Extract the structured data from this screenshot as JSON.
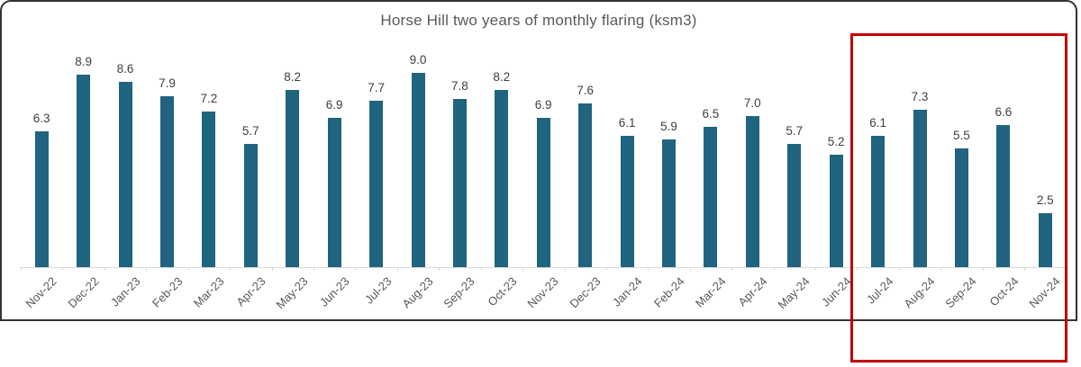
{
  "chart_data": {
    "type": "bar",
    "title": "Horse Hill two years of monthly flaring (ksm3)",
    "categories": [
      "Nov-22",
      "Dec-22",
      "Jan-23",
      "Feb-23",
      "Mar-23",
      "Apr-23",
      "May-23",
      "Jun-23",
      "Jul-23",
      "Aug-23",
      "Sep-23",
      "Oct-23",
      "Nov-23",
      "Dec-23",
      "Jan-24",
      "Feb-24",
      "Mar-24",
      "Apr-24",
      "May-24",
      "Jun-24",
      "Jul-24",
      "Aug-24",
      "Sep-24",
      "Oct-24",
      "Nov-24"
    ],
    "values": [
      6.3,
      8.9,
      8.6,
      7.9,
      7.2,
      5.7,
      8.2,
      6.9,
      7.7,
      9.0,
      7.8,
      8.2,
      6.9,
      7.6,
      6.1,
      5.9,
      6.5,
      7.0,
      5.7,
      5.2,
      6.1,
      7.3,
      5.5,
      6.6,
      2.5
    ],
    "xlabel": "",
    "ylabel": "",
    "ylim": [
      0,
      9.5
    ],
    "grid": false,
    "legend": false,
    "data_labels": true,
    "bar_color": "#20647f",
    "axis_color": "#d9d9d9",
    "label_color": "#404040",
    "category_label_color": "#595959",
    "title_color": "#595959",
    "annotation": {
      "shape": "rectangle",
      "color": "#c00000",
      "highlighted_categories": [
        "Jul-24",
        "Aug-24",
        "Sep-24",
        "Oct-24",
        "Nov-24"
      ]
    }
  }
}
